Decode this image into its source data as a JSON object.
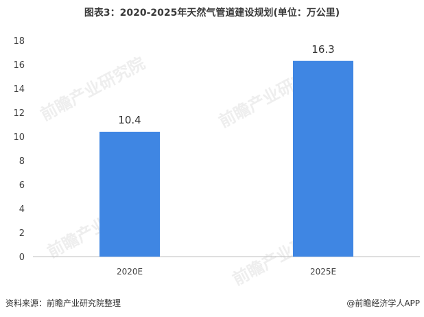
{
  "title": "图表3：2020-2025年天然气管道建设规划(单位：万公里)",
  "footer": {
    "source": "资料来源：前瞻产业研究院整理",
    "brand": "@前瞻经济学人APP"
  },
  "watermark_text": "前瞻产业研究院",
  "colors": {
    "bar": "#3f86e3",
    "axis": "#bfbfbf",
    "text": "#404040"
  },
  "chart_data": {
    "type": "bar",
    "title": "图表3：2020-2025年天然气管道建设规划(单位：万公里)",
    "categories": [
      "2020E",
      "2025E"
    ],
    "values": [
      10.4,
      16.3
    ],
    "data_labels": [
      "10.4",
      "16.3"
    ],
    "xlabel": "",
    "ylabel": "",
    "ylim": [
      0,
      18
    ],
    "yticks": [
      0,
      2,
      4,
      6,
      8,
      10,
      12,
      14,
      16,
      18
    ],
    "grid": false,
    "legend": "none"
  }
}
